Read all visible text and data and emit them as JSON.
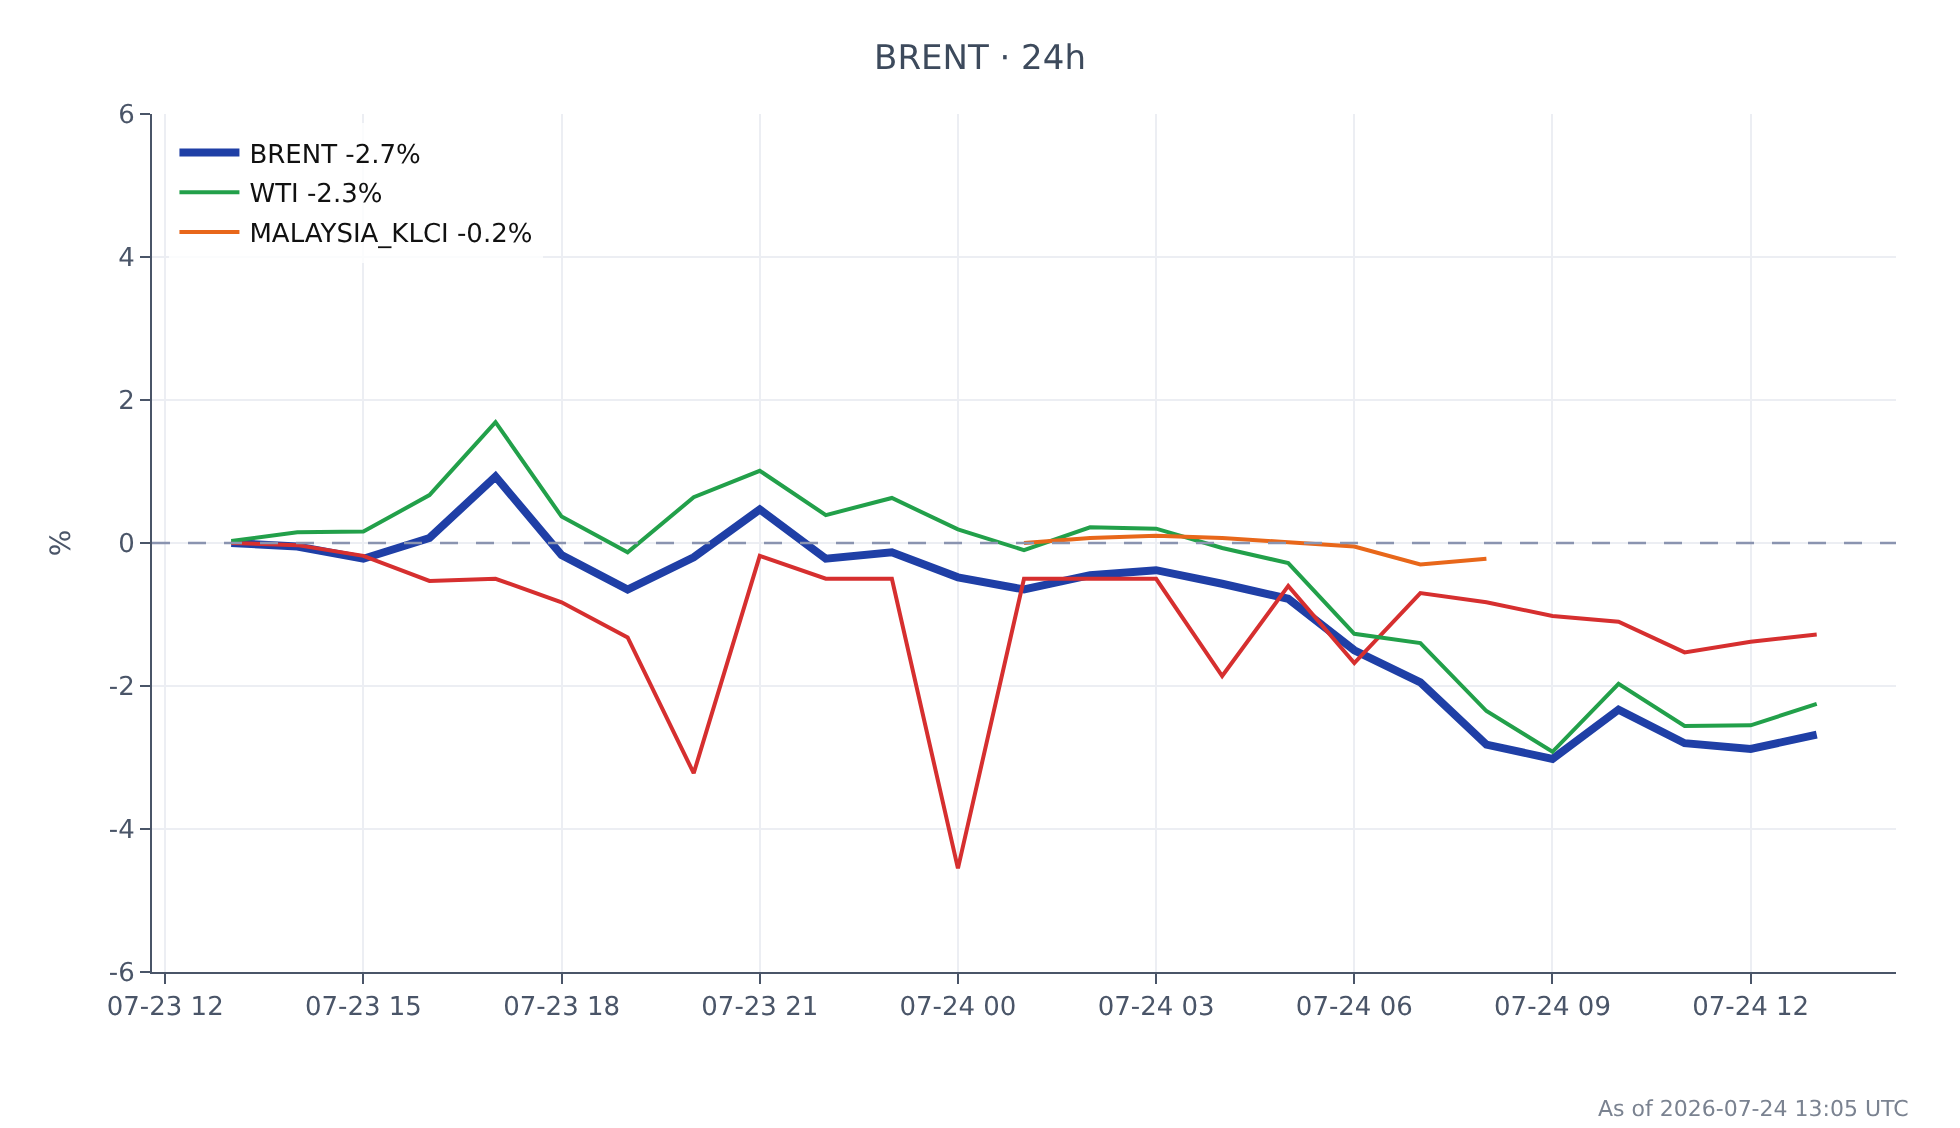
{
  "chart_data": {
    "type": "line",
    "title": "BRENT · 24h",
    "ylabel": "%",
    "x": [
      "2026-07-23T13:00",
      "2026-07-23T14:00",
      "2026-07-23T15:00",
      "2026-07-23T16:00",
      "2026-07-23T17:00",
      "2026-07-23T18:00",
      "2026-07-23T19:00",
      "2026-07-23T20:00",
      "2026-07-23T21:00",
      "2026-07-23T22:00",
      "2026-07-23T23:00",
      "2026-07-24T00:00",
      "2026-07-24T01:00",
      "2026-07-24T02:00",
      "2026-07-24T03:00",
      "2026-07-24T04:00",
      "2026-07-24T05:00",
      "2026-07-24T06:00",
      "2026-07-24T07:00",
      "2026-07-24T08:00",
      "2026-07-24T09:00",
      "2026-07-24T10:00",
      "2026-07-24T11:00",
      "2026-07-24T12:00",
      "2026-07-24T13:00"
    ],
    "series": [
      {
        "name": "BRENT -2.7%",
        "color": "#1f3fa6",
        "values": [
          0,
          -0.05,
          -0.22,
          0.07,
          0.93,
          -0.17,
          -0.65,
          -0.2,
          0.47,
          -0.22,
          -0.13,
          -0.48,
          -0.65,
          -0.45,
          -0.38,
          -0.57,
          -0.78,
          -1.5,
          -1.95,
          -2.82,
          -3.02,
          -2.33,
          -2.8,
          -2.88,
          -2.68
        ]
      },
      {
        "color": "#d62f2f",
        "values": [
          0,
          -0.03,
          -0.18,
          -0.53,
          -0.5,
          -0.83,
          -1.32,
          -3.22,
          -0.18,
          -0.5,
          -0.5,
          -4.55,
          -0.5,
          -0.5,
          -0.5,
          -1.86,
          -0.6,
          -1.68,
          -0.7,
          -0.83,
          -1.02,
          -1.1,
          -1.53,
          -1.38,
          -1.28
        ]
      },
      {
        "name": "WTI -2.3%",
        "color": "#22a04a",
        "values": [
          0.03,
          0.15,
          0.16,
          0.67,
          1.69,
          0.37,
          -0.13,
          0.64,
          1.01,
          0.39,
          0.63,
          0.19,
          -0.1,
          0.22,
          0.2,
          -0.07,
          -0.28,
          -1.27,
          -1.4,
          -2.35,
          -2.92,
          -1.97,
          -2.56,
          -2.55,
          -2.25
        ]
      },
      {
        "name": "MALAYSIA_KLCI -0.2%",
        "color": "#e8671a",
        "x": [
          "2026-07-24T01:00",
          "2026-07-24T02:00",
          "2026-07-24T03:00",
          "2026-07-24T04:00",
          "2026-07-24T05:00",
          "2026-07-24T06:00",
          "2026-07-24T07:00",
          "2026-07-24T08:00"
        ],
        "values": [
          0,
          0.07,
          0.1,
          0.07,
          0.01,
          -0.05,
          -0.3,
          -0.22
        ]
      }
    ],
    "xlim": [
      "2026-07-23T11:48",
      "2026-07-24T14:12"
    ],
    "xticks": [
      {
        "value": "2026-07-23T12:00",
        "label": "07-23 12"
      },
      {
        "value": "2026-07-23T15:00",
        "label": "07-23 15"
      },
      {
        "value": "2026-07-23T18:00",
        "label": "07-23 18"
      },
      {
        "value": "2026-07-23T21:00",
        "label": "07-23 21"
      },
      {
        "value": "2026-07-24T00:00",
        "label": "07-24 00"
      },
      {
        "value": "2026-07-24T03:00",
        "label": "07-24 03"
      },
      {
        "value": "2026-07-24T06:00",
        "label": "07-24 06"
      },
      {
        "value": "2026-07-24T09:00",
        "label": "07-24 09"
      },
      {
        "value": "2026-07-24T12:00",
        "label": "07-24 12"
      }
    ],
    "ylim": [
      -6,
      6
    ],
    "yticks": [
      -6,
      -4,
      -2,
      0,
      2,
      4,
      6
    ],
    "ref_lines": [
      {
        "axis": "y",
        "value": 0,
        "color": "#8a94b0",
        "line_style": "dashed"
      }
    ],
    "grid": true,
    "legend": "top left",
    "marker": "none",
    "line_style": "solid",
    "annotations": [
      "As of 2026-07-24 13:05 UTC"
    ]
  }
}
